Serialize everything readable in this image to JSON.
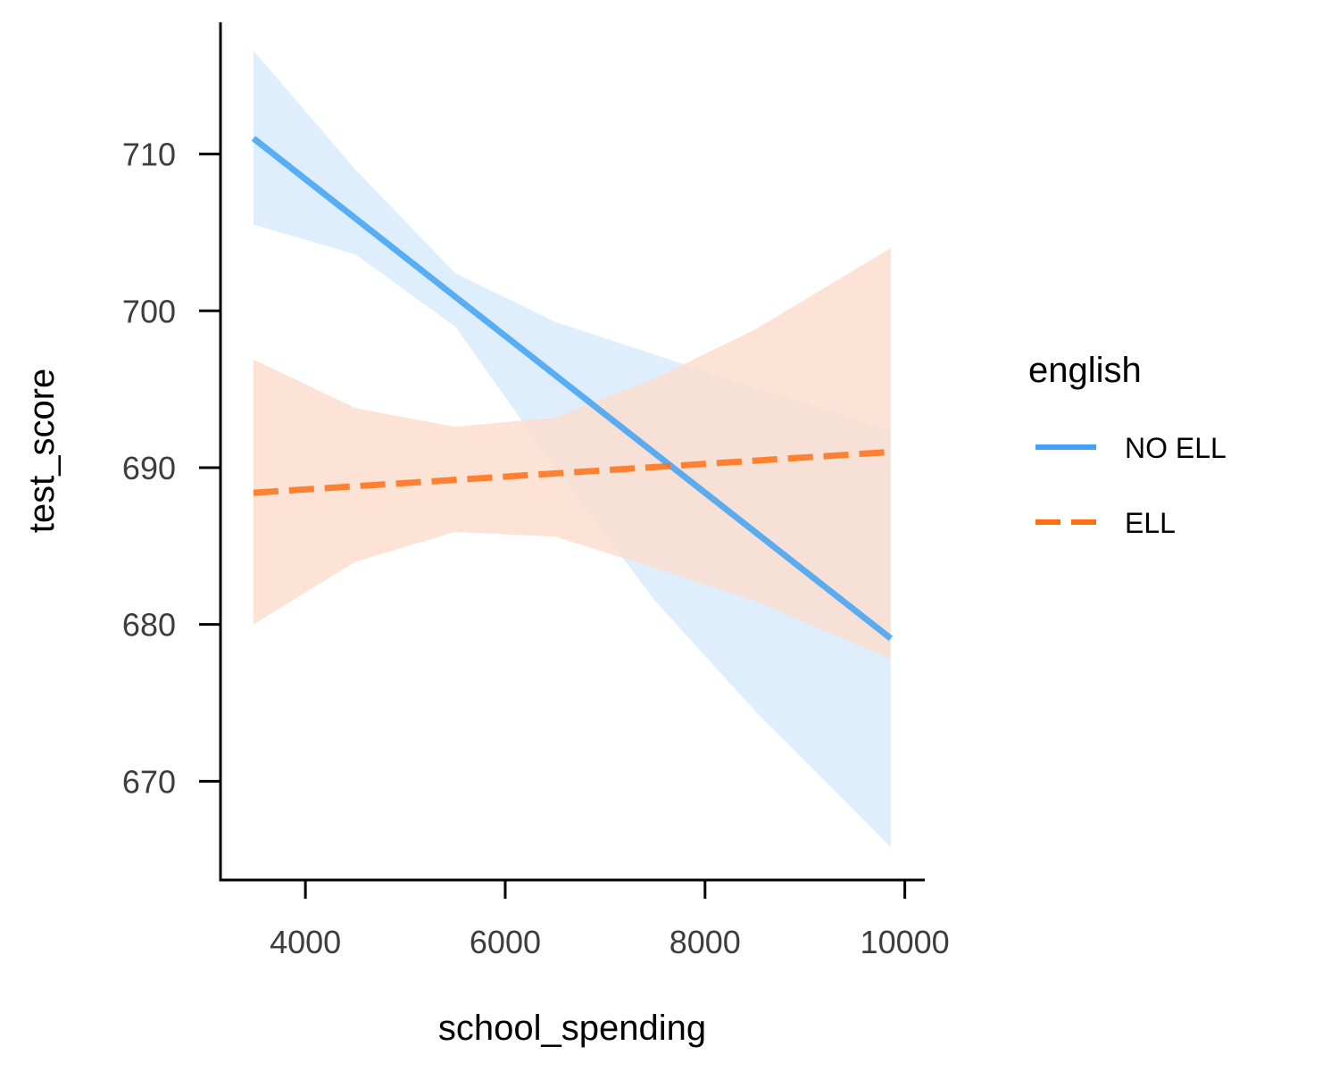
{
  "chart_data": {
    "type": "line",
    "xlabel": "school_spending",
    "ylabel": "test_score",
    "xlim": [
      3150,
      10200
    ],
    "ylim": [
      663.7,
      718.4
    ],
    "xticks": [
      4000,
      6000,
      8000,
      10000
    ],
    "yticks": [
      670,
      680,
      690,
      700,
      710
    ],
    "grid": false,
    "legend": {
      "title": "english",
      "position": "right"
    },
    "series": [
      {
        "name": "NO ELL",
        "color": "#3fa2f3",
        "band_color": "#d6eafc",
        "linestyle": "solid",
        "x": [
          3480,
          9860
        ],
        "y": [
          711.0,
          679.1
        ],
        "band_x": [
          3480,
          4500,
          5500,
          6500,
          7500,
          8500,
          9860
        ],
        "band_lower": [
          705.5,
          703.6,
          699.0,
          690.0,
          681.5,
          674.5,
          665.8
        ],
        "band_upper": [
          716.6,
          709.0,
          702.4,
          699.3,
          697.2,
          695.1,
          692.4
        ]
      },
      {
        "name": "ELL",
        "color": "#ff6e13",
        "band_color": "#fcdccb",
        "linestyle": "dashed",
        "x": [
          3480,
          9860
        ],
        "y": [
          688.4,
          691.0
        ],
        "band_x": [
          3480,
          4500,
          5500,
          6500,
          7500,
          8500,
          9860
        ],
        "band_lower": [
          680.0,
          684.0,
          685.9,
          685.6,
          683.6,
          681.5,
          677.8
        ],
        "band_upper": [
          696.9,
          693.8,
          692.6,
          693.2,
          695.7,
          698.8,
          704.0
        ]
      }
    ]
  }
}
